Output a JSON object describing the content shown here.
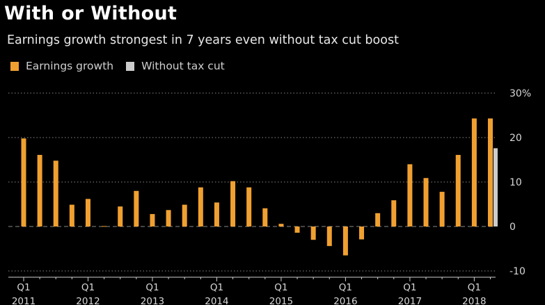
{
  "title": "With or Without",
  "subtitle": "Earnings growth strongest in 7 years even without tax cut boost",
  "colors": {
    "background": "#000000",
    "earnings": "#f0a031",
    "without_tax": "#cccccc",
    "grid": "#8a8a8a"
  },
  "chart_data": {
    "type": "bar",
    "title": "With or Without",
    "subtitle": "Earnings growth strongest in 7 years even without tax cut boost",
    "legend_position": "top-left",
    "grid": true,
    "ylim": [
      -10,
      30
    ],
    "yticks": [
      "30%",
      "20",
      "10",
      "0",
      "-10"
    ],
    "ytick_values": [
      30,
      20,
      10,
      0,
      -10
    ],
    "quarters": [
      "Q1 2011",
      "Q2 2011",
      "Q3 2011",
      "Q4 2011",
      "Q1 2012",
      "Q2 2012",
      "Q3 2012",
      "Q4 2012",
      "Q1 2013",
      "Q2 2013",
      "Q3 2013",
      "Q4 2013",
      "Q1 2014",
      "Q2 2014",
      "Q3 2014",
      "Q4 2014",
      "Q1 2015",
      "Q2 2015",
      "Q3 2015",
      "Q4 2015",
      "Q1 2016",
      "Q2 2016",
      "Q3 2016",
      "Q4 2016",
      "Q1 2017",
      "Q2 2017",
      "Q3 2017",
      "Q4 2017",
      "Q1 2018",
      "Q2 2018"
    ],
    "xtick_labels": [
      {
        "q": "Q1",
        "year": "2011",
        "index": 0
      },
      {
        "q": "Q1",
        "year": "2012",
        "index": 4
      },
      {
        "q": "Q1",
        "year": "2013",
        "index": 8
      },
      {
        "q": "Q1",
        "year": "2014",
        "index": 12
      },
      {
        "q": "Q1",
        "year": "2015",
        "index": 16
      },
      {
        "q": "Q1",
        "year": "2016",
        "index": 20
      },
      {
        "q": "Q1",
        "year": "2017",
        "index": 24
      },
      {
        "q": "Q1",
        "year": "2018",
        "index": 28
      }
    ],
    "series": [
      {
        "name": "Earnings growth",
        "color": "#f0a031",
        "values": [
          19.8,
          16.1,
          14.8,
          4.9,
          6.2,
          0.1,
          4.5,
          8.0,
          2.8,
          3.7,
          4.9,
          8.8,
          5.4,
          10.2,
          8.8,
          4.1,
          0.6,
          -1.4,
          -3.0,
          -4.4,
          -6.5,
          -2.9,
          3.0,
          5.9,
          14.0,
          10.9,
          7.8,
          16.1,
          24.3,
          24.3
        ]
      },
      {
        "name": "Without tax cut",
        "color": "#cccccc",
        "values": [
          null,
          null,
          null,
          null,
          null,
          null,
          null,
          null,
          null,
          null,
          null,
          null,
          null,
          null,
          null,
          null,
          null,
          null,
          null,
          null,
          null,
          null,
          null,
          null,
          null,
          null,
          null,
          null,
          null,
          17.6
        ]
      }
    ]
  }
}
